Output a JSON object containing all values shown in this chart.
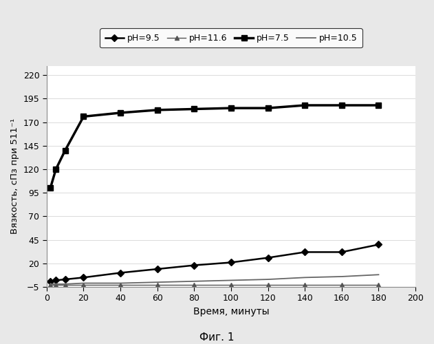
{
  "title": "",
  "xlabel": "Время, минуты",
  "ylabel": "Вязкость, сПз при 511⁻¹",
  "caption": "Фиг. 1",
  "xlim": [
    0,
    200
  ],
  "ylim": [
    -5,
    230
  ],
  "yticks": [
    -5,
    20,
    45,
    70,
    95,
    120,
    145,
    170,
    195,
    220
  ],
  "xticks": [
    0,
    20,
    40,
    60,
    80,
    100,
    120,
    140,
    160,
    180,
    200
  ],
  "series": {
    "pH=9.5": {
      "x": [
        2,
        5,
        10,
        20,
        40,
        60,
        80,
        100,
        120,
        140,
        160,
        180
      ],
      "y": [
        1,
        2,
        3,
        5,
        10,
        14,
        18,
        21,
        26,
        32,
        32,
        40
      ],
      "color": "#000000",
      "marker": "D",
      "markersize": 5,
      "linewidth": 1.8,
      "linestyle": "-"
    },
    "pH=11.6": {
      "x": [
        2,
        5,
        10,
        20,
        40,
        60,
        80,
        100,
        120,
        140,
        160,
        180
      ],
      "y": [
        -3,
        -3,
        -3,
        -3,
        -3,
        -3,
        -3,
        -3,
        -3,
        -3,
        -3,
        -3
      ],
      "color": "#555555",
      "marker": "^",
      "markersize": 5,
      "linewidth": 1.0,
      "linestyle": "-"
    },
    "pH=7.5": {
      "x": [
        2,
        5,
        10,
        20,
        40,
        60,
        80,
        100,
        120,
        140,
        160,
        180
      ],
      "y": [
        100,
        120,
        140,
        176,
        180,
        183,
        184,
        185,
        185,
        188,
        188,
        188
      ],
      "color": "#000000",
      "marker": "s",
      "markersize": 6,
      "linewidth": 2.5,
      "linestyle": "-"
    },
    "pH=10.5": {
      "x": [
        2,
        5,
        10,
        20,
        40,
        60,
        80,
        100,
        120,
        140,
        160,
        180
      ],
      "y": [
        -2,
        -2,
        -2,
        -1,
        -1,
        0,
        1,
        2,
        3,
        5,
        6,
        8
      ],
      "color": "#666666",
      "marker": "None",
      "markersize": 0,
      "linewidth": 1.3,
      "linestyle": "-"
    }
  },
  "legend_order": [
    "pH=9.5",
    "pH=11.6",
    "pH=7.5",
    "pH=10.5"
  ],
  "background_color": "#e8e8e8",
  "plot_bg_color": "#ffffff"
}
